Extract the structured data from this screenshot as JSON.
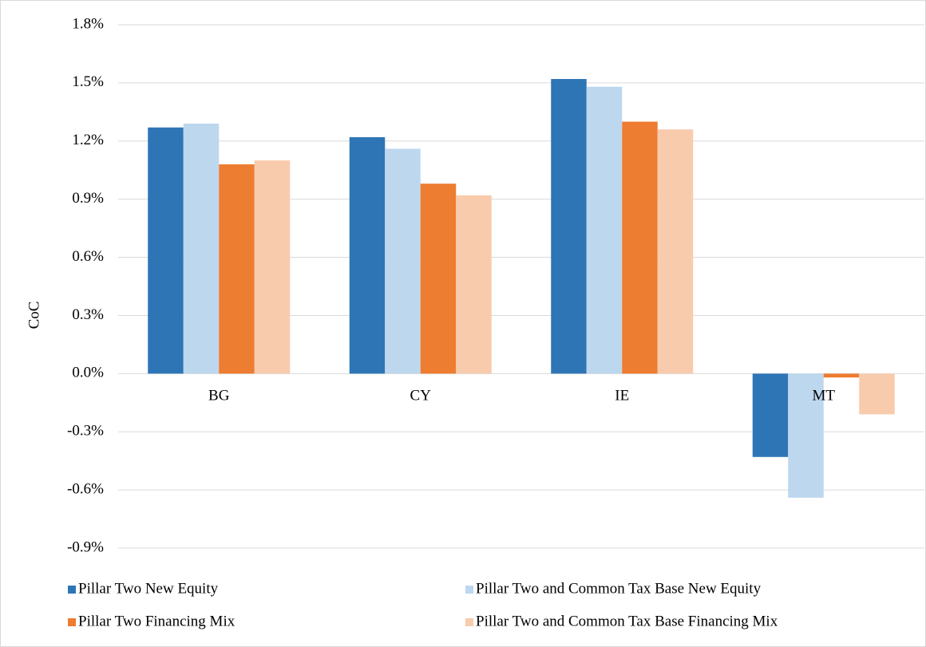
{
  "chart_data": {
    "type": "bar",
    "y_label": "CoC",
    "categories": [
      "BG",
      "CY",
      "IE",
      "MT"
    ],
    "series": [
      {
        "name": "Pillar Two New Equity",
        "color": "#2e75b6",
        "values": [
          1.27,
          1.22,
          1.52,
          -0.43
        ]
      },
      {
        "name": "Pillar Two and Common Tax Base New Equity",
        "color": "#bdd7ee",
        "values": [
          1.29,
          1.16,
          1.48,
          -0.64
        ]
      },
      {
        "name": "Pillar Two Financing Mix",
        "color": "#ed7d31",
        "values": [
          1.08,
          0.98,
          1.3,
          -0.02
        ]
      },
      {
        "name": "Pillar Two and Common Tax Base Financing Mix",
        "color": "#f8cbad",
        "values": [
          1.1,
          0.92,
          1.26,
          -0.21
        ]
      }
    ],
    "ylim": [
      -0.9,
      1.8
    ],
    "yticks": [
      {
        "value": -0.9,
        "label": "-0.9%"
      },
      {
        "value": -0.6,
        "label": "-0.6%"
      },
      {
        "value": -0.3,
        "label": "-0.3%"
      },
      {
        "value": 0,
        "label": "0.0%"
      },
      {
        "value": 0.3,
        "label": "0.3%"
      },
      {
        "value": 0.6,
        "label": "0.6%"
      },
      {
        "value": 0.9,
        "label": "0.9%"
      },
      {
        "value": 1.2,
        "label": "1.2%"
      },
      {
        "value": 1.5,
        "label": "1.5%"
      },
      {
        "value": 1.8,
        "label": "1.8%"
      }
    ],
    "grid": true,
    "legend": "bottom"
  }
}
